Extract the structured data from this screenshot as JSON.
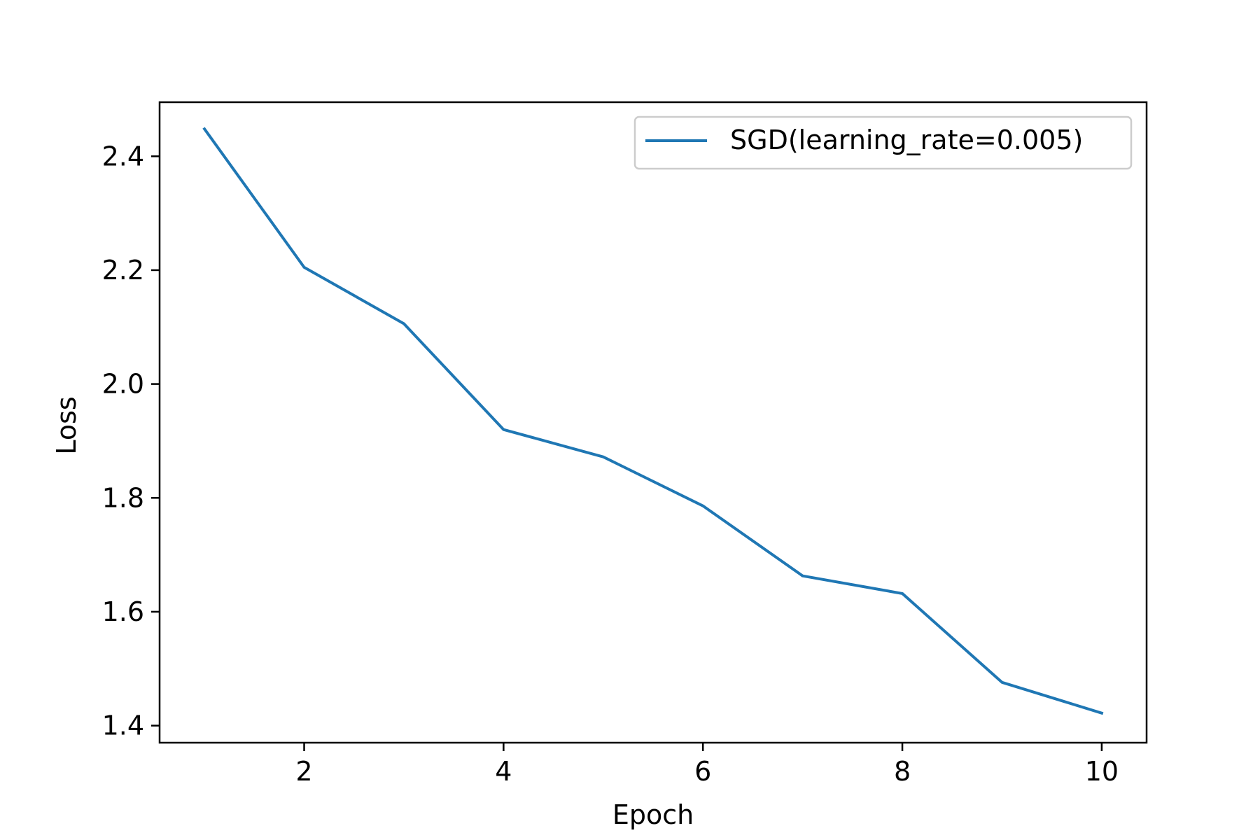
{
  "chart_data": {
    "type": "line",
    "title": "",
    "xlabel": "Epoch",
    "ylabel": "Loss",
    "xlim": [
      0.55,
      10.45
    ],
    "ylim": [
      1.37,
      2.495
    ],
    "xticks": [
      2,
      4,
      6,
      8,
      10
    ],
    "yticks": [
      1.4,
      1.6,
      1.8,
      2.0,
      2.2,
      2.4
    ],
    "xtick_labels": [
      "2",
      "4",
      "6",
      "8",
      "10"
    ],
    "ytick_labels": [
      "1.4",
      "1.6",
      "1.8",
      "2.0",
      "2.2",
      "2.4"
    ],
    "grid": false,
    "legend_position": "top-right",
    "series": [
      {
        "name": "SGD(learning_rate=0.005)",
        "color": "#1f77b4",
        "x": [
          1,
          2,
          3,
          4,
          5,
          6,
          7,
          8,
          9,
          10
        ],
        "y": [
          2.448,
          2.205,
          2.106,
          1.92,
          1.872,
          1.786,
          1.663,
          1.632,
          1.476,
          1.422
        ]
      }
    ]
  }
}
